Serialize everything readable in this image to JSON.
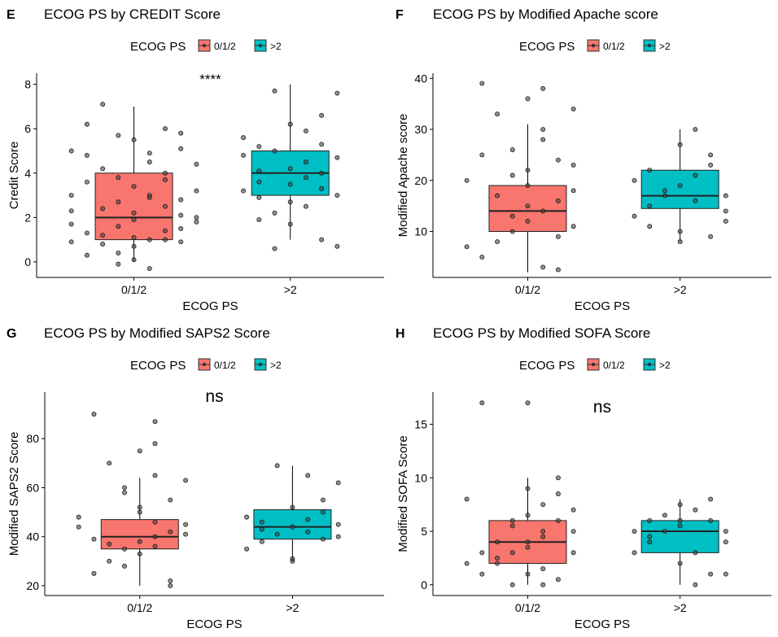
{
  "legend_title": "ECOG PS",
  "legend_items": [
    {
      "label": "0/1/2",
      "color": "#F8766D"
    },
    {
      "label": ">2",
      "color": "#00BFC4"
    }
  ],
  "chart_data": [
    {
      "type": "boxplot",
      "panel_letter": "E",
      "title": "ECOG PS by CREDIT Score",
      "xlabel": "ECOG PS",
      "ylabel": "Credit Score",
      "categories": [
        "0/1/2",
        ">2"
      ],
      "yticks": [
        0,
        2,
        4,
        6,
        8
      ],
      "ylim": [
        -0.7,
        8.5
      ],
      "annotation": "****",
      "boxes": [
        {
          "category": "0/1/2",
          "min": 0,
          "q1": 1,
          "median": 2,
          "q3": 4,
          "max": 7,
          "color": "#F8766D"
        },
        {
          "category": ">2",
          "min": 1,
          "q1": 3,
          "median": 4,
          "q3": 5,
          "max": 8,
          "color": "#00BFC4"
        }
      ],
      "points": [
        [
          [
            0.6,
            0.9
          ],
          [
            0.9,
            0.4
          ],
          [
            1.0,
            1.1
          ],
          [
            1.0,
            0.7
          ],
          [
            0.7,
            1.3
          ],
          [
            1.3,
            2.1
          ],
          [
            1.4,
            1.8
          ],
          [
            1.0,
            2.2
          ],
          [
            1.1,
            1.0
          ],
          [
            0.8,
            2.4
          ],
          [
            0.9,
            1.6
          ],
          [
            1.2,
            1.0
          ],
          [
            1.3,
            2.8
          ],
          [
            0.6,
            3.0
          ],
          [
            0.7,
            3.6
          ],
          [
            1.4,
            3.2
          ],
          [
            1.2,
            4.0
          ],
          [
            0.8,
            4.2
          ],
          [
            1.1,
            4.5
          ],
          [
            0.9,
            3.8
          ],
          [
            0.6,
            5.0
          ],
          [
            1.3,
            5.1
          ],
          [
            1.0,
            5.5
          ],
          [
            1.2,
            6.0
          ],
          [
            0.7,
            6.2
          ],
          [
            0.8,
            7.1
          ],
          [
            1.3,
            5.8
          ],
          [
            1.1,
            3.0
          ],
          [
            0.9,
            2.7
          ],
          [
            1.4,
            2.0
          ],
          [
            0.6,
            1.7
          ],
          [
            1.2,
            1.4
          ],
          [
            1.0,
            0.1
          ],
          [
            1.1,
            -0.3
          ],
          [
            0.9,
            -0.1
          ],
          [
            0.7,
            0.3
          ],
          [
            1.3,
            0.9
          ],
          [
            0.8,
            1.2
          ],
          [
            1.2,
            2.5
          ],
          [
            1.0,
            3.4
          ],
          [
            0.7,
            4.8
          ],
          [
            1.1,
            4.9
          ],
          [
            0.9,
            5.7
          ],
          [
            1.4,
            4.4
          ],
          [
            0.6,
            2.3
          ],
          [
            1.0,
            1.9
          ],
          [
            1.3,
            1.5
          ],
          [
            0.8,
            0.8
          ],
          [
            1.1,
            2.9
          ],
          [
            1.2,
            3.7
          ]
        ],
        [
          [
            1.7,
            3.2
          ],
          [
            1.8,
            4.1
          ],
          [
            1.9,
            5.0
          ],
          [
            2.0,
            4.2
          ],
          [
            2.1,
            3.8
          ],
          [
            2.2,
            5.3
          ],
          [
            2.3,
            4.7
          ],
          [
            1.8,
            2.9
          ],
          [
            2.0,
            6.2
          ],
          [
            2.2,
            6.6
          ],
          [
            2.3,
            7.6
          ],
          [
            1.9,
            7.7
          ],
          [
            1.7,
            5.6
          ],
          [
            2.1,
            2.5
          ],
          [
            2.0,
            1.7
          ],
          [
            1.8,
            1.9
          ],
          [
            2.2,
            1.0
          ],
          [
            2.3,
            0.7
          ],
          [
            1.9,
            0.6
          ],
          [
            2.1,
            4.5
          ],
          [
            2.0,
            3.5
          ],
          [
            1.8,
            3.6
          ],
          [
            2.2,
            4.0
          ],
          [
            2.1,
            5.9
          ],
          [
            1.9,
            2.2
          ],
          [
            2.3,
            3.0
          ],
          [
            1.7,
            4.8
          ],
          [
            2.0,
            2.7
          ],
          [
            2.2,
            3.3
          ],
          [
            1.8,
            5.2
          ]
        ]
      ]
    },
    {
      "type": "boxplot",
      "panel_letter": "F",
      "title": "ECOG PS by Modified Apache score",
      "xlabel": "ECOG PS",
      "ylabel": "Modified Apache score",
      "categories": [
        "0/1/2",
        ">2"
      ],
      "yticks": [
        10,
        20,
        30,
        40
      ],
      "ylim": [
        1,
        41
      ],
      "annotation": "",
      "boxes": [
        {
          "category": "0/1/2",
          "min": 2,
          "q1": 10,
          "median": 14,
          "q3": 19,
          "max": 31,
          "color": "#F8766D"
        },
        {
          "category": ">2",
          "min": 8,
          "q1": 14.5,
          "median": 17,
          "q3": 22,
          "max": 30,
          "color": "#00BFC4"
        }
      ],
      "points": [
        [
          [
            0.7,
            5
          ],
          [
            0.8,
            8
          ],
          [
            0.9,
            10
          ],
          [
            1.0,
            12
          ],
          [
            1.1,
            14
          ],
          [
            1.2,
            16
          ],
          [
            1.3,
            18
          ],
          [
            0.6,
            20
          ],
          [
            1.0,
            22
          ],
          [
            1.2,
            24
          ],
          [
            0.9,
            26
          ],
          [
            1.1,
            30
          ],
          [
            0.8,
            33
          ],
          [
            1.0,
            36
          ],
          [
            1.1,
            38
          ],
          [
            0.7,
            39
          ],
          [
            1.3,
            34
          ],
          [
            1.2,
            9
          ],
          [
            0.9,
            13
          ],
          [
            1.0,
            15
          ],
          [
            0.8,
            17
          ],
          [
            1.3,
            11
          ],
          [
            0.6,
            7
          ],
          [
            1.1,
            3
          ],
          [
            1.2,
            2.5
          ],
          [
            1.0,
            19
          ],
          [
            0.9,
            21
          ],
          [
            1.3,
            23
          ],
          [
            0.7,
            25
          ],
          [
            1.1,
            28
          ]
        ],
        [
          [
            1.7,
            13
          ],
          [
            1.8,
            15
          ],
          [
            1.9,
            17
          ],
          [
            2.0,
            19
          ],
          [
            2.1,
            21
          ],
          [
            2.2,
            23
          ],
          [
            2.3,
            12
          ],
          [
            1.8,
            11
          ],
          [
            2.0,
            10
          ],
          [
            2.2,
            9
          ],
          [
            2.3,
            14
          ],
          [
            2.1,
            16
          ],
          [
            1.9,
            18
          ],
          [
            2.0,
            27
          ],
          [
            2.1,
            30
          ],
          [
            1.8,
            22
          ],
          [
            2.2,
            25
          ],
          [
            2.0,
            8
          ],
          [
            1.7,
            20
          ],
          [
            2.3,
            17
          ]
        ]
      ]
    },
    {
      "type": "boxplot",
      "panel_letter": "G",
      "title": "ECOG PS by Modified SAPS2 Score",
      "xlabel": "ECOG PS",
      "ylabel": "Modified SAPS2 Score",
      "categories": [
        "0/1/2",
        ">2"
      ],
      "yticks": [
        20,
        40,
        60,
        80
      ],
      "ylim": [
        16,
        99
      ],
      "annotation": "ns",
      "boxes": [
        {
          "category": "0/1/2",
          "min": 20,
          "q1": 35,
          "median": 40,
          "q3": 47,
          "max": 64,
          "color": "#F8766D"
        },
        {
          "category": ">2",
          "min": 30,
          "q1": 39,
          "median": 44,
          "q3": 51,
          "max": 69,
          "color": "#00BFC4"
        }
      ],
      "points": [
        [
          [
            0.7,
            25
          ],
          [
            0.8,
            30
          ],
          [
            0.9,
            35
          ],
          [
            1.0,
            38
          ],
          [
            1.1,
            40
          ],
          [
            1.2,
            42
          ],
          [
            1.3,
            45
          ],
          [
            0.6,
            48
          ],
          [
            1.0,
            50
          ],
          [
            1.2,
            55
          ],
          [
            0.9,
            60
          ],
          [
            1.1,
            65
          ],
          [
            0.8,
            70
          ],
          [
            1.0,
            75
          ],
          [
            1.1,
            78
          ],
          [
            0.7,
            90
          ],
          [
            1.1,
            87
          ],
          [
            1.2,
            22
          ],
          [
            0.9,
            28
          ],
          [
            1.0,
            33
          ],
          [
            0.8,
            37
          ],
          [
            1.3,
            41
          ],
          [
            0.6,
            44
          ],
          [
            1.1,
            46
          ],
          [
            1.2,
            20
          ],
          [
            1.0,
            52
          ],
          [
            0.9,
            58
          ],
          [
            1.3,
            63
          ],
          [
            0.7,
            39
          ],
          [
            1.1,
            36
          ]
        ],
        [
          [
            1.7,
            35
          ],
          [
            1.8,
            38
          ],
          [
            1.9,
            41
          ],
          [
            2.0,
            44
          ],
          [
            2.1,
            47
          ],
          [
            2.2,
            50
          ],
          [
            2.3,
            40
          ],
          [
            1.8,
            43
          ],
          [
            2.0,
            30
          ],
          [
            2.2,
            55
          ],
          [
            2.3,
            62
          ],
          [
            2.1,
            65
          ],
          [
            1.9,
            69
          ],
          [
            2.0,
            52
          ],
          [
            2.1,
            42
          ],
          [
            1.8,
            46
          ],
          [
            2.2,
            39
          ],
          [
            2.0,
            31
          ],
          [
            1.7,
            48
          ],
          [
            2.3,
            45
          ]
        ]
      ]
    },
    {
      "type": "boxplot",
      "panel_letter": "H",
      "title": "ECOG PS by Modified SOFA Score",
      "xlabel": "ECOG PS",
      "ylabel": "Modified SOFA Score",
      "categories": [
        "0/1/2",
        ">2"
      ],
      "yticks": [
        0,
        5,
        10,
        15
      ],
      "ylim": [
        -1,
        18
      ],
      "annotation": "ns",
      "boxes": [
        {
          "category": "0/1/2",
          "min": 0,
          "q1": 2,
          "median": 4,
          "q3": 6,
          "max": 10,
          "color": "#F8766D"
        },
        {
          "category": ">2",
          "min": 0,
          "q1": 3,
          "median": 5,
          "q3": 6,
          "max": 8,
          "color": "#00BFC4"
        }
      ],
      "points": [
        [
          [
            0.7,
            1
          ],
          [
            0.8,
            2
          ],
          [
            0.9,
            3
          ],
          [
            1.0,
            4
          ],
          [
            1.1,
            5
          ],
          [
            1.2,
            6
          ],
          [
            1.3,
            7
          ],
          [
            0.6,
            8
          ],
          [
            1.0,
            9
          ],
          [
            1.2,
            10
          ],
          [
            0.9,
            0
          ],
          [
            1.1,
            1.5
          ],
          [
            0.8,
            2.5
          ],
          [
            1.0,
            3.5
          ],
          [
            1.1,
            4.5
          ],
          [
            0.7,
            17
          ],
          [
            1.0,
            17
          ],
          [
            1.2,
            0.5
          ],
          [
            0.9,
            5.5
          ],
          [
            1.0,
            6.5
          ],
          [
            0.8,
            4
          ],
          [
            1.3,
            3
          ],
          [
            0.6,
            2
          ],
          [
            1.1,
            7.5
          ],
          [
            1.2,
            8.5
          ],
          [
            1.0,
            1
          ],
          [
            0.9,
            6
          ],
          [
            1.3,
            5
          ],
          [
            0.7,
            3
          ],
          [
            1.1,
            0
          ]
        ],
        [
          [
            1.7,
            3
          ],
          [
            1.8,
            4
          ],
          [
            1.9,
            5
          ],
          [
            2.0,
            6
          ],
          [
            2.1,
            7
          ],
          [
            2.2,
            8
          ],
          [
            2.3,
            5
          ],
          [
            1.8,
            6
          ],
          [
            2.0,
            2
          ],
          [
            2.2,
            1
          ],
          [
            2.3,
            4
          ],
          [
            2.1,
            3
          ],
          [
            1.9,
            6.5
          ],
          [
            2.0,
            5.5
          ],
          [
            2.1,
            0
          ],
          [
            1.8,
            4.5
          ],
          [
            2.2,
            6
          ],
          [
            2.0,
            7.5
          ],
          [
            1.7,
            5
          ],
          [
            2.3,
            1
          ]
        ]
      ]
    }
  ]
}
